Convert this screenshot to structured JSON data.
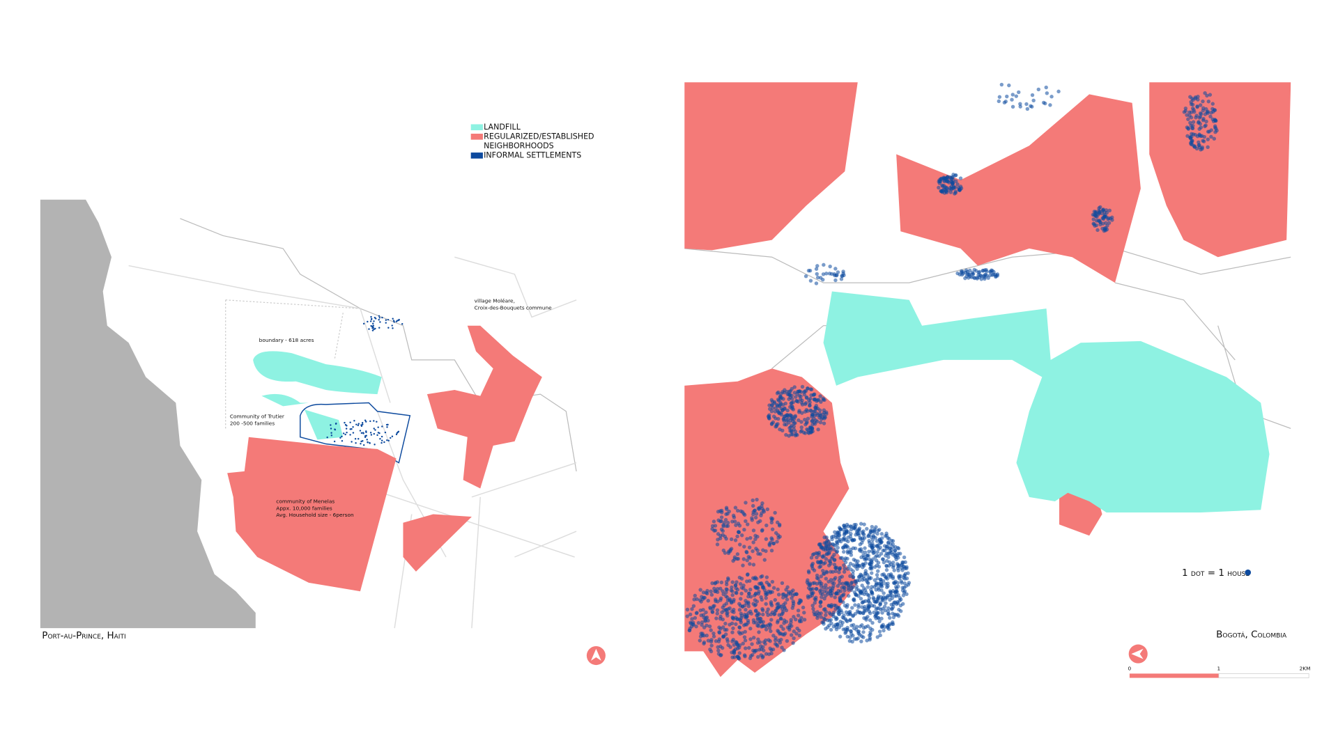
{
  "legend": {
    "items": [
      "LANDFILL",
      "REGULARIZED/ESTABLISHED",
      "NEIGHBORHOODS",
      "INFORMAL SETTLEMENTS"
    ]
  },
  "left_map": {
    "caption": "Port-au-Prince, Haiti",
    "labels": {
      "village": [
        "village Moléare,",
        "Croix-des-Bouquets commune"
      ],
      "boundary": "boundary - 618 acres",
      "trutier": [
        "Community of Trutier",
        "200 -500 families"
      ],
      "menelas": [
        "community of Menelas",
        "Appx. 10,000 families",
        "Avg. Household size - 6person"
      ]
    }
  },
  "right_map": {
    "caption": "Bogotá, Colombia",
    "dot_legend": "1 dot = 1 house",
    "scale": [
      "0",
      "1",
      "2KM"
    ]
  }
}
